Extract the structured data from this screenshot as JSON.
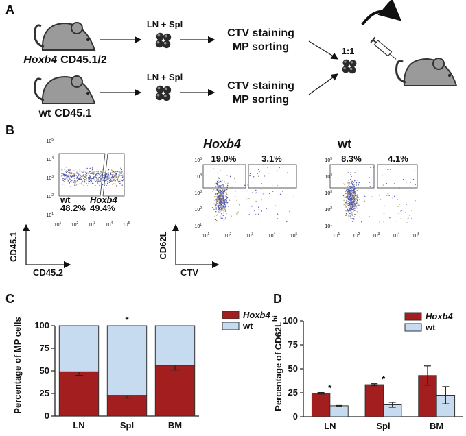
{
  "panel_a": {
    "label": "A",
    "rows": [
      {
        "strain": "Hoxb4",
        "marker": "CD45.1/2",
        "cells": "LN + Spl",
        "step_1": "CTV staining",
        "step_2": "MP sorting"
      },
      {
        "strain": "wt",
        "marker": "CD45.1",
        "cells": "LN + Spl",
        "step_1": "CTV staining",
        "step_2": "MP sorting"
      }
    ],
    "mix": "1:1"
  },
  "panel_b": {
    "label": "B",
    "tick_base": "10",
    "tick_exponents": [
      "1",
      "2",
      "3",
      "4",
      "5"
    ],
    "plot_1": {
      "gates": [
        {
          "name": "wt",
          "value": "48.2%"
        },
        {
          "name": "Hoxb4",
          "value": "49.4%"
        }
      ],
      "y_label": "CD45.1",
      "x_label": "CD45.2"
    },
    "plot_2": {
      "title": "Hoxb4",
      "gates": [
        "19.0%",
        "3.1%"
      ]
    },
    "plot_3": {
      "title": "wt",
      "gates": [
        "8.3%",
        "4.1%"
      ]
    },
    "y_label": "CD62L",
    "x_label": "CTV"
  },
  "chart_data": [
    {
      "type": "stacked_bar",
      "label": "C",
      "y_label": "Percentage of MP cells",
      "categories": [
        "LN",
        "Spl",
        "BM"
      ],
      "series": [
        {
          "name": "Hoxb4",
          "color": "#a31f1f",
          "values": [
            49,
            23,
            56
          ],
          "errors": [
            4,
            3,
            5
          ]
        },
        {
          "name": "wt",
          "color": "#c6dbf0",
          "values": [
            51,
            77,
            44
          ]
        }
      ],
      "ylim": [
        0,
        100
      ],
      "yticks": [
        0,
        25,
        50,
        75,
        100
      ],
      "annotations": [
        null,
        "*",
        null
      ]
    },
    {
      "type": "grouped_bar",
      "label": "D",
      "y_label": "Percentage of CD62L",
      "y_label_superscript": "hi",
      "categories": [
        "LN",
        "Spl",
        "BM"
      ],
      "series": [
        {
          "name": "Hoxb4",
          "color": "#a31f1f",
          "values": [
            24.5,
            33.5,
            43
          ],
          "errors": [
            0.8,
            1,
            10
          ]
        },
        {
          "name": "wt",
          "color": "#c6dbf0",
          "values": [
            11.5,
            12.5,
            22.5
          ],
          "errors": [
            0.3,
            2.5,
            9
          ]
        }
      ],
      "ylim": [
        0,
        100
      ],
      "yticks": [
        0,
        25,
        50,
        75,
        100
      ],
      "annotations": [
        "*",
        "*",
        null
      ]
    }
  ]
}
